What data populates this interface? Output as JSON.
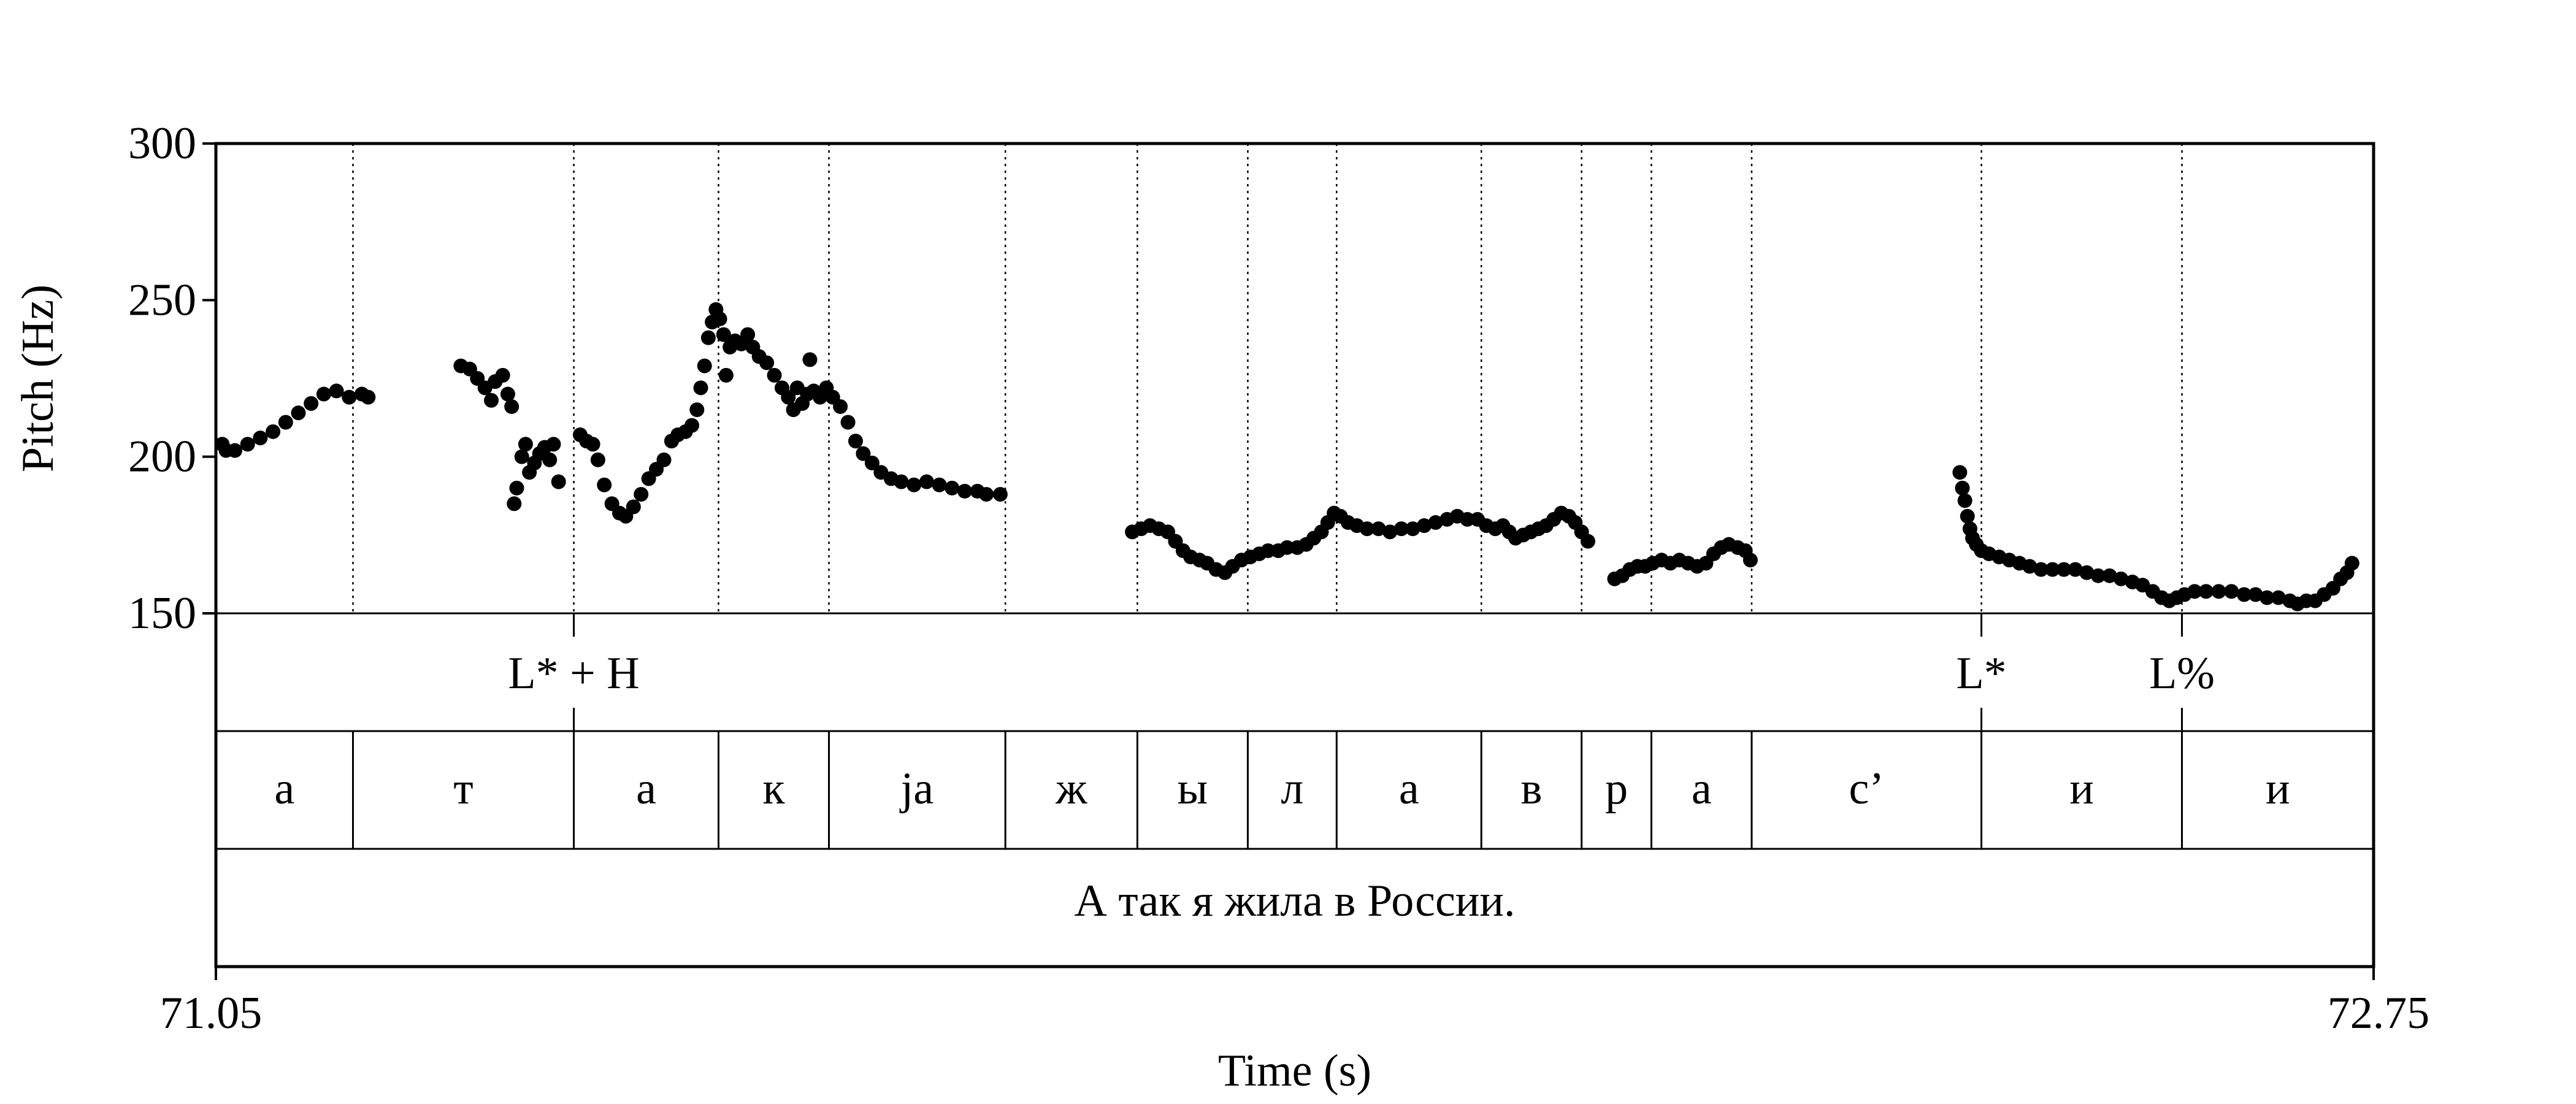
{
  "chart_data": {
    "type": "scatter",
    "xlabel": "Time (s)",
    "ylabel": "Pitch (Hz)",
    "xlim": [
      71.05,
      72.75
    ],
    "ylim": [
      150,
      300
    ],
    "x_ticks": [
      "71.05",
      "72.75"
    ],
    "y_ticks": [
      {
        "value": 300,
        "label": "300"
      },
      {
        "value": 250,
        "label": "250"
      },
      {
        "value": 200,
        "label": "200"
      },
      {
        "value": 150,
        "label": "150"
      }
    ],
    "boundaries": [
      71.158,
      71.332,
      71.446,
      71.533,
      71.672,
      71.776,
      71.863,
      71.933,
      72.047,
      72.126,
      72.181,
      72.26,
      72.441,
      72.599
    ],
    "tones": [
      {
        "time": 71.332,
        "label": "L* + H"
      },
      {
        "time": 72.441,
        "label": "L*"
      },
      {
        "time": 72.599,
        "label": "L%"
      }
    ],
    "segments": [
      "а",
      "т",
      "а",
      "к",
      "ja",
      "ж",
      "ы",
      "л",
      "а",
      "в",
      "р",
      "а",
      "с’",
      "и",
      "и"
    ],
    "sentence": "А так я жила в России.",
    "pitch_series": [
      {
        "x": 71.055,
        "y": 204
      },
      {
        "x": 71.058,
        "y": 202
      },
      {
        "x": 71.065,
        "y": 202
      },
      {
        "x": 71.075,
        "y": 204
      },
      {
        "x": 71.085,
        "y": 206
      },
      {
        "x": 71.095,
        "y": 208
      },
      {
        "x": 71.105,
        "y": 211
      },
      {
        "x": 71.115,
        "y": 214
      },
      {
        "x": 71.125,
        "y": 217
      },
      {
        "x": 71.135,
        "y": 220
      },
      {
        "x": 71.145,
        "y": 221
      },
      {
        "x": 71.155,
        "y": 219
      },
      {
        "x": 71.165,
        "y": 220
      },
      {
        "x": 71.17,
        "y": 219
      },
      {
        "x": 71.243,
        "y": 229
      },
      {
        "x": 71.25,
        "y": 228
      },
      {
        "x": 71.256,
        "y": 225
      },
      {
        "x": 71.262,
        "y": 222
      },
      {
        "x": 71.267,
        "y": 218
      },
      {
        "x": 71.27,
        "y": 224
      },
      {
        "x": 71.276,
        "y": 226
      },
      {
        "x": 71.28,
        "y": 220
      },
      {
        "x": 71.283,
        "y": 216
      },
      {
        "x": 71.285,
        "y": 185
      },
      {
        "x": 71.287,
        "y": 190
      },
      {
        "x": 71.291,
        "y": 200
      },
      {
        "x": 71.294,
        "y": 204
      },
      {
        "x": 71.297,
        "y": 195
      },
      {
        "x": 71.301,
        "y": 198
      },
      {
        "x": 71.305,
        "y": 201
      },
      {
        "x": 71.309,
        "y": 203
      },
      {
        "x": 71.313,
        "y": 199
      },
      {
        "x": 71.316,
        "y": 204
      },
      {
        "x": 71.32,
        "y": 192
      },
      {
        "x": 71.337,
        "y": 207
      },
      {
        "x": 71.342,
        "y": 205
      },
      {
        "x": 71.347,
        "y": 204
      },
      {
        "x": 71.351,
        "y": 199
      },
      {
        "x": 71.356,
        "y": 191
      },
      {
        "x": 71.362,
        "y": 185
      },
      {
        "x": 71.368,
        "y": 182
      },
      {
        "x": 71.373,
        "y": 181
      },
      {
        "x": 71.379,
        "y": 184
      },
      {
        "x": 71.385,
        "y": 188
      },
      {
        "x": 71.391,
        "y": 193
      },
      {
        "x": 71.397,
        "y": 196
      },
      {
        "x": 71.403,
        "y": 199
      },
      {
        "x": 71.409,
        "y": 205
      },
      {
        "x": 71.414,
        "y": 207
      },
      {
        "x": 71.42,
        "y": 208
      },
      {
        "x": 71.425,
        "y": 210
      },
      {
        "x": 71.429,
        "y": 215
      },
      {
        "x": 71.432,
        "y": 222
      },
      {
        "x": 71.435,
        "y": 229
      },
      {
        "x": 71.438,
        "y": 238
      },
      {
        "x": 71.441,
        "y": 243
      },
      {
        "x": 71.444,
        "y": 247
      },
      {
        "x": 71.447,
        "y": 244
      },
      {
        "x": 71.45,
        "y": 239
      },
      {
        "x": 71.452,
        "y": 226
      },
      {
        "x": 71.455,
        "y": 235
      },
      {
        "x": 71.459,
        "y": 237
      },
      {
        "x": 71.464,
        "y": 236
      },
      {
        "x": 71.469,
        "y": 239
      },
      {
        "x": 71.473,
        "y": 235
      },
      {
        "x": 71.478,
        "y": 232
      },
      {
        "x": 71.484,
        "y": 230
      },
      {
        "x": 71.49,
        "y": 226
      },
      {
        "x": 71.496,
        "y": 222
      },
      {
        "x": 71.501,
        "y": 219
      },
      {
        "x": 71.505,
        "y": 215
      },
      {
        "x": 71.508,
        "y": 222
      },
      {
        "x": 71.512,
        "y": 217
      },
      {
        "x": 71.516,
        "y": 220
      },
      {
        "x": 71.518,
        "y": 231
      },
      {
        "x": 71.521,
        "y": 221
      },
      {
        "x": 71.526,
        "y": 219
      },
      {
        "x": 71.531,
        "y": 222
      },
      {
        "x": 71.536,
        "y": 219
      },
      {
        "x": 71.542,
        "y": 216
      },
      {
        "x": 71.548,
        "y": 211
      },
      {
        "x": 71.554,
        "y": 205
      },
      {
        "x": 71.56,
        "y": 201
      },
      {
        "x": 71.567,
        "y": 198
      },
      {
        "x": 71.574,
        "y": 195
      },
      {
        "x": 71.582,
        "y": 193
      },
      {
        "x": 71.59,
        "y": 192
      },
      {
        "x": 71.6,
        "y": 191
      },
      {
        "x": 71.61,
        "y": 192
      },
      {
        "x": 71.62,
        "y": 191
      },
      {
        "x": 71.63,
        "y": 190
      },
      {
        "x": 71.64,
        "y": 189
      },
      {
        "x": 71.65,
        "y": 189
      },
      {
        "x": 71.657,
        "y": 188
      },
      {
        "x": 71.668,
        "y": 188
      },
      {
        "x": 71.772,
        "y": 176
      },
      {
        "x": 71.779,
        "y": 177
      },
      {
        "x": 71.786,
        "y": 178
      },
      {
        "x": 71.793,
        "y": 177
      },
      {
        "x": 71.8,
        "y": 176
      },
      {
        "x": 71.806,
        "y": 173
      },
      {
        "x": 71.812,
        "y": 170
      },
      {
        "x": 71.818,
        "y": 168
      },
      {
        "x": 71.825,
        "y": 167
      },
      {
        "x": 71.831,
        "y": 166
      },
      {
        "x": 71.838,
        "y": 164
      },
      {
        "x": 71.845,
        "y": 163
      },
      {
        "x": 71.851,
        "y": 165
      },
      {
        "x": 71.858,
        "y": 167
      },
      {
        "x": 71.865,
        "y": 168
      },
      {
        "x": 71.872,
        "y": 169
      },
      {
        "x": 71.879,
        "y": 170
      },
      {
        "x": 71.887,
        "y": 170
      },
      {
        "x": 71.894,
        "y": 171
      },
      {
        "x": 71.902,
        "y": 171
      },
      {
        "x": 71.909,
        "y": 172
      },
      {
        "x": 71.915,
        "y": 174
      },
      {
        "x": 71.921,
        "y": 176
      },
      {
        "x": 71.926,
        "y": 179
      },
      {
        "x": 71.931,
        "y": 182
      },
      {
        "x": 71.936,
        "y": 181
      },
      {
        "x": 71.942,
        "y": 179
      },
      {
        "x": 71.949,
        "y": 178
      },
      {
        "x": 71.957,
        "y": 177
      },
      {
        "x": 71.966,
        "y": 177
      },
      {
        "x": 71.975,
        "y": 176
      },
      {
        "x": 71.984,
        "y": 177
      },
      {
        "x": 71.993,
        "y": 177
      },
      {
        "x": 72.002,
        "y": 178
      },
      {
        "x": 72.011,
        "y": 179
      },
      {
        "x": 72.02,
        "y": 180
      },
      {
        "x": 72.028,
        "y": 181
      },
      {
        "x": 72.036,
        "y": 180
      },
      {
        "x": 72.044,
        "y": 180
      },
      {
        "x": 72.051,
        "y": 178
      },
      {
        "x": 72.058,
        "y": 177
      },
      {
        "x": 72.064,
        "y": 178
      },
      {
        "x": 72.069,
        "y": 176
      },
      {
        "x": 72.074,
        "y": 174
      },
      {
        "x": 72.08,
        "y": 175
      },
      {
        "x": 72.086,
        "y": 176
      },
      {
        "x": 72.092,
        "y": 177
      },
      {
        "x": 72.098,
        "y": 178
      },
      {
        "x": 72.104,
        "y": 180
      },
      {
        "x": 72.11,
        "y": 182
      },
      {
        "x": 72.116,
        "y": 181
      },
      {
        "x": 72.121,
        "y": 179
      },
      {
        "x": 72.126,
        "y": 176
      },
      {
        "x": 72.131,
        "y": 173
      },
      {
        "x": 72.152,
        "y": 161
      },
      {
        "x": 72.158,
        "y": 162
      },
      {
        "x": 72.164,
        "y": 164
      },
      {
        "x": 72.17,
        "y": 165
      },
      {
        "x": 72.176,
        "y": 165
      },
      {
        "x": 72.182,
        "y": 166
      },
      {
        "x": 72.189,
        "y": 167
      },
      {
        "x": 72.196,
        "y": 166
      },
      {
        "x": 72.203,
        "y": 167
      },
      {
        "x": 72.21,
        "y": 166
      },
      {
        "x": 72.217,
        "y": 165
      },
      {
        "x": 72.224,
        "y": 166
      },
      {
        "x": 72.23,
        "y": 169
      },
      {
        "x": 72.236,
        "y": 171
      },
      {
        "x": 72.242,
        "y": 172
      },
      {
        "x": 72.249,
        "y": 171
      },
      {
        "x": 72.255,
        "y": 170
      },
      {
        "x": 72.259,
        "y": 167
      },
      {
        "x": 72.424,
        "y": 195
      },
      {
        "x": 72.426,
        "y": 190
      },
      {
        "x": 72.428,
        "y": 186
      },
      {
        "x": 72.43,
        "y": 181
      },
      {
        "x": 72.432,
        "y": 177
      },
      {
        "x": 72.434,
        "y": 174
      },
      {
        "x": 72.437,
        "y": 172
      },
      {
        "x": 72.441,
        "y": 170
      },
      {
        "x": 72.447,
        "y": 169
      },
      {
        "x": 72.455,
        "y": 168
      },
      {
        "x": 72.463,
        "y": 167
      },
      {
        "x": 72.471,
        "y": 166
      },
      {
        "x": 72.479,
        "y": 165
      },
      {
        "x": 72.488,
        "y": 164
      },
      {
        "x": 72.497,
        "y": 164
      },
      {
        "x": 72.506,
        "y": 164
      },
      {
        "x": 72.515,
        "y": 164
      },
      {
        "x": 72.524,
        "y": 163
      },
      {
        "x": 72.533,
        "y": 162
      },
      {
        "x": 72.542,
        "y": 162
      },
      {
        "x": 72.551,
        "y": 161
      },
      {
        "x": 72.56,
        "y": 160
      },
      {
        "x": 72.568,
        "y": 159
      },
      {
        "x": 72.576,
        "y": 157
      },
      {
        "x": 72.583,
        "y": 155
      },
      {
        "x": 72.589,
        "y": 154
      },
      {
        "x": 72.595,
        "y": 155
      },
      {
        "x": 72.601,
        "y": 156
      },
      {
        "x": 72.609,
        "y": 157
      },
      {
        "x": 72.618,
        "y": 157
      },
      {
        "x": 72.628,
        "y": 157
      },
      {
        "x": 72.638,
        "y": 157
      },
      {
        "x": 72.648,
        "y": 156
      },
      {
        "x": 72.657,
        "y": 156
      },
      {
        "x": 72.666,
        "y": 155
      },
      {
        "x": 72.675,
        "y": 155
      },
      {
        "x": 72.684,
        "y": 154
      },
      {
        "x": 72.69,
        "y": 153
      },
      {
        "x": 72.697,
        "y": 154
      },
      {
        "x": 72.704,
        "y": 154
      },
      {
        "x": 72.711,
        "y": 156
      },
      {
        "x": 72.718,
        "y": 158
      },
      {
        "x": 72.724,
        "y": 161
      },
      {
        "x": 72.729,
        "y": 163
      },
      {
        "x": 72.733,
        "y": 166
      }
    ]
  }
}
